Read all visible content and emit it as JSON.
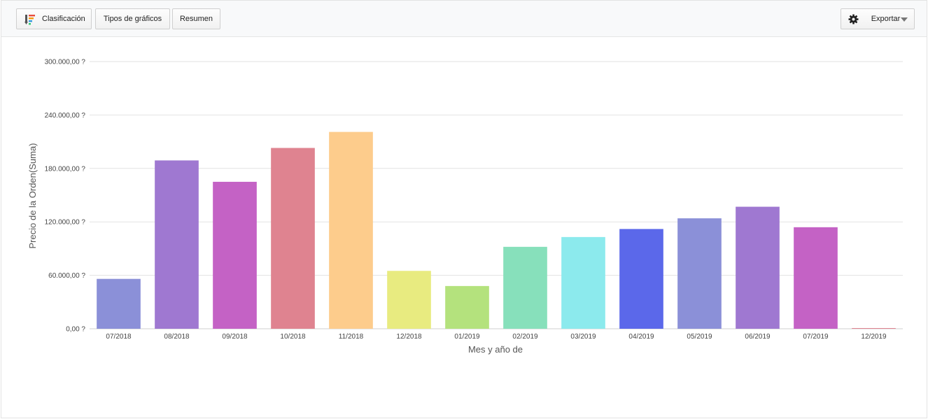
{
  "toolbar": {
    "sort_label": "Clasificación",
    "chart_types_label": "Tipos de gráficos",
    "summary_label": "Resumen",
    "export_label": "Exportar",
    "sort_icon": "sort-bars-icon",
    "export_icon": "gear-icon",
    "dropdown_icon": "caret-down-icon"
  },
  "chart_data": {
    "type": "bar",
    "title": "",
    "xlabel": "Mes y año de",
    "ylabel": "Precio de la Orden(Suma)",
    "ylim": [
      0,
      300000
    ],
    "yticks": [
      0,
      60000,
      120000,
      180000,
      240000,
      300000
    ],
    "ytick_labels": [
      "0,00 ?",
      "60.000,00 ?",
      "120.000,00 ?",
      "180.000,00 ?",
      "240.000,00 ?",
      "300.000,00 ?"
    ],
    "grid": true,
    "legend": "none",
    "categories": [
      "07/2018",
      "08/2018",
      "09/2018",
      "10/2018",
      "11/2018",
      "12/2018",
      "01/2019",
      "02/2019",
      "03/2019",
      "04/2019",
      "05/2019",
      "06/2019",
      "07/2019",
      "12/2019"
    ],
    "values": [
      56000,
      189000,
      165000,
      203000,
      221000,
      65000,
      48000,
      92000,
      103000,
      112000,
      124000,
      137000,
      114000,
      400
    ],
    "colors": [
      "#8b90d8",
      "#9f78d1",
      "#c462c5",
      "#df8390",
      "#fdcc8c",
      "#e8eb80",
      "#b4e27d",
      "#87e0bb",
      "#8ceaed",
      "#5b68ea",
      "#8b90d8",
      "#9f78d1",
      "#c462c5",
      "#df8390"
    ]
  }
}
